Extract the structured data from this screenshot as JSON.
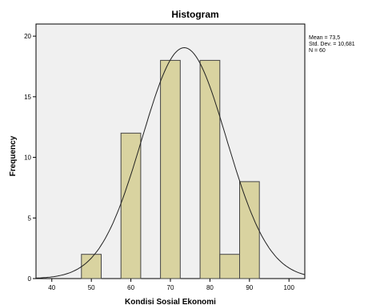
{
  "chart_data": {
    "type": "bar",
    "title": "Histogram",
    "xlabel": "Kondisi Sosial Ekonomi",
    "ylabel": "Frequency",
    "xlim": [
      36,
      104
    ],
    "ylim": [
      0,
      21
    ],
    "x_ticks": [
      40,
      50,
      60,
      70,
      80,
      90,
      100
    ],
    "y_ticks": [
      0,
      5,
      10,
      15,
      20
    ],
    "bins": [
      {
        "x0": 47.5,
        "x1": 52.5,
        "value": 2
      },
      {
        "x0": 57.5,
        "x1": 62.5,
        "value": 12
      },
      {
        "x0": 67.5,
        "x1": 72.5,
        "value": 18
      },
      {
        "x0": 77.5,
        "x1": 82.5,
        "value": 18
      },
      {
        "x0": 82.5,
        "x1": 87.5,
        "value": 2
      },
      {
        "x0": 87.5,
        "x1": 92.5,
        "value": 8
      }
    ],
    "normal_curve": {
      "mean": 73.5,
      "std_dev": 10.681,
      "n": 60,
      "bin_width": 8.5
    },
    "stats": [
      "Mean = 73,5",
      "Std. Dev. = 10,681",
      "N = 60"
    ],
    "grid": false,
    "colors": {
      "plot_background": "#f0f0f0",
      "bar_fill": "#d9d3a0",
      "bar_stroke": "#444444",
      "curve": "#222222"
    }
  }
}
